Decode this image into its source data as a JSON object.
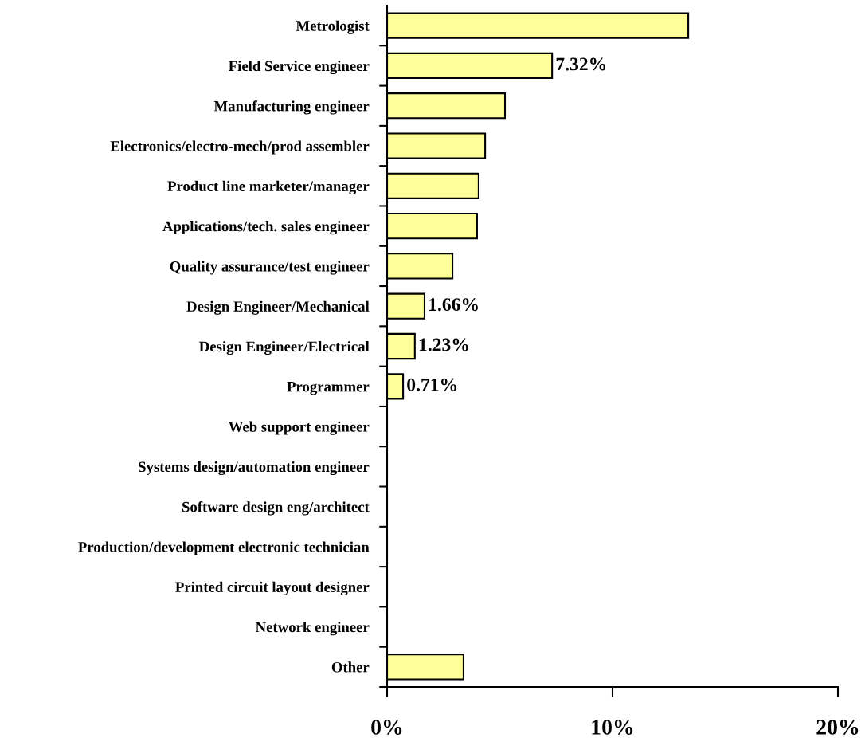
{
  "chart_data": {
    "type": "bar",
    "orientation": "horizontal",
    "categories": [
      "Metrologist",
      "Field Service engineer",
      "Manufacturing engineer",
      "Electronics/electro-mech/prod assembler",
      "Product line marketer/manager",
      "Applications/tech. sales engineer",
      "Quality assurance/test engineer",
      "Design Engineer/Mechanical",
      "Design Engineer/Electrical",
      "Programmer",
      "Web support engineer",
      "Systems design/automation engineer",
      "Software design eng/architect",
      "Production/development electronic technician",
      "Printed circuit layout designer",
      "Network engineer",
      "Other"
    ],
    "values": [
      13.36,
      7.32,
      5.23,
      4.35,
      4.06,
      3.99,
      2.9,
      1.66,
      1.23,
      0.71,
      0,
      0,
      0,
      0,
      0,
      0,
      3.39
    ],
    "value_labels": [
      null,
      "7.32%",
      null,
      null,
      null,
      null,
      null,
      "1.66%",
      "1.23%",
      "0.71%",
      null,
      null,
      null,
      null,
      null,
      null,
      null
    ],
    "color": "#ffff99",
    "xlim": [
      0,
      20
    ],
    "xticks": [
      {
        "value": 0,
        "label": "0%"
      },
      {
        "value": 10,
        "label": "10%"
      },
      {
        "value": 20,
        "label": "20%"
      }
    ],
    "grid": false,
    "legend": false
  }
}
